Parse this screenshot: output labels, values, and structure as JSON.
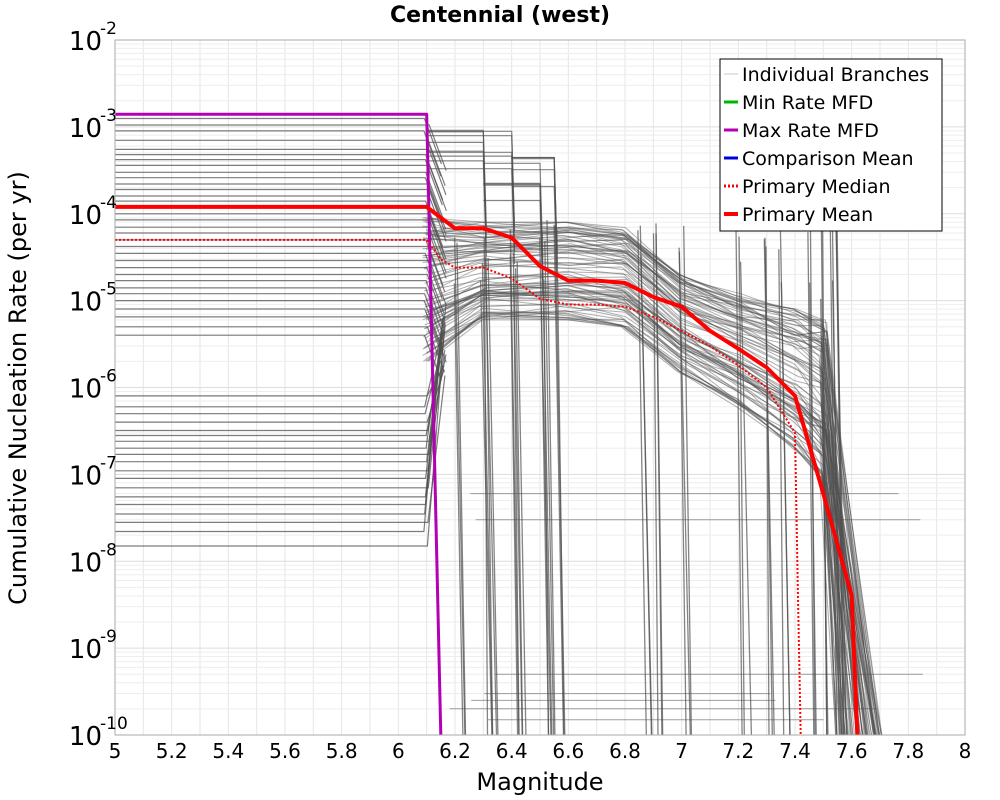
{
  "chart_data": {
    "type": "line",
    "title": "Centennial (west)",
    "xlabel": "Magnitude",
    "ylabel": "Cumulative Nucleation Rate (per yr)",
    "xlim": [
      5,
      8
    ],
    "ylim": [
      1e-10,
      0.01
    ],
    "yscale": "log",
    "grid": true,
    "legend_position": "top-right",
    "x_ticks": [
      {
        "value": 5,
        "label": "5"
      },
      {
        "value": 5.2,
        "label": "5.2"
      },
      {
        "value": 5.4,
        "label": "5.4"
      },
      {
        "value": 5.6,
        "label": "5.6"
      },
      {
        "value": 5.8,
        "label": "5.8"
      },
      {
        "value": 6,
        "label": "6"
      },
      {
        "value": 6.2,
        "label": "6.2"
      },
      {
        "value": 6.4,
        "label": "6.4"
      },
      {
        "value": 6.6,
        "label": "6.6"
      },
      {
        "value": 6.8,
        "label": "6.8"
      },
      {
        "value": 7,
        "label": "7"
      },
      {
        "value": 7.2,
        "label": "7.2"
      },
      {
        "value": 7.4,
        "label": "7.4"
      },
      {
        "value": 7.6,
        "label": "7.6"
      },
      {
        "value": 7.8,
        "label": "7.8"
      },
      {
        "value": 8,
        "label": "8"
      }
    ],
    "y_ticks": [
      {
        "value": 1e-10,
        "base": "10",
        "exp": "-10"
      },
      {
        "value": 1e-09,
        "base": "10",
        "exp": "-9"
      },
      {
        "value": 1e-08,
        "base": "10",
        "exp": "-8"
      },
      {
        "value": 1e-07,
        "base": "10",
        "exp": "-7"
      },
      {
        "value": 1e-06,
        "base": "10",
        "exp": "-6"
      },
      {
        "value": 1e-05,
        "base": "10",
        "exp": "-5"
      },
      {
        "value": 0.0001,
        "base": "10",
        "exp": "-4"
      },
      {
        "value": 0.001,
        "base": "10",
        "exp": "-3"
      },
      {
        "value": 0.01,
        "base": "10",
        "exp": "-2"
      }
    ],
    "legend": [
      {
        "label": "Individual Branches",
        "color": "#c8c8c8",
        "style": "solid-thin"
      },
      {
        "label": "Min Rate MFD",
        "color": "#00b400",
        "style": "solid"
      },
      {
        "label": "Max Rate MFD",
        "color": "#b400b4",
        "style": "solid"
      },
      {
        "label": "Comparison Mean",
        "color": "#0000dc",
        "style": "solid"
      },
      {
        "label": "Primary Median",
        "color": "#ff0000",
        "style": "dotted"
      },
      {
        "label": "Primary Mean",
        "color": "#ff0000",
        "style": "solid-thick"
      }
    ],
    "branches": {
      "color": "#505050",
      "flat_level_groups": [
        {
          "x_end": 6.1,
          "levels": [
            0.00125,
            0.00105,
            0.0009,
            0.0007,
            0.00055,
            0.00048,
            0.00042,
            0.00036,
            0.0003,
            0.00026,
            0.00022,
            0.00019,
            0.00016,
            0.00014,
            0.00012,
            0.0001,
            8.5e-05,
            7e-05,
            6e-05,
            5e-05,
            4.2e-05,
            3.5e-05,
            2.9e-05,
            2.4e-05,
            2e-05,
            1.7e-05,
            1.4e-05,
            1.2e-05,
            1e-05,
            8e-06,
            6.5e-06,
            5e-06,
            4e-06
          ]
        },
        {
          "x_end": 6.1,
          "levels": [
            8e-07,
            6e-07,
            5e-07,
            4e-07,
            3.2e-07,
            2.8e-07,
            2.4e-07,
            2e-07,
            1.7e-07,
            1.4e-07,
            1.1e-07,
            9e-08,
            7e-08,
            5.5e-08,
            4.5e-08,
            3.5e-08,
            2.8e-08,
            2.2e-08,
            1.5e-08
          ]
        }
      ],
      "step_groups": [
        {
          "x_start": 6.1,
          "x_end": 6.3,
          "top": 0.001
        },
        {
          "x_start": 6.1,
          "x_end": 6.4,
          "top": 0.001
        },
        {
          "x_start": 6.3,
          "x_end": 6.5,
          "top": 0.00045
        },
        {
          "x_start": 6.4,
          "x_end": 6.55,
          "top": 0.00045
        }
      ],
      "plateau_band": {
        "x": [
          6.1,
          6.3,
          6.6,
          6.8,
          7.0,
          7.2,
          7.4,
          7.5
        ],
        "upper": [
          9e-05,
          8e-05,
          8e-05,
          7e-05,
          2e-05,
          1.2e-05,
          8e-06,
          6e-06
        ],
        "lower": [
          2e-06,
          6e-06,
          6e-06,
          5e-06,
          1.5e-06,
          6e-07,
          2e-07,
          8e-08
        ]
      },
      "low_levels": [
        5e-10,
        3e-10,
        2.5e-10,
        2e-10,
        1.5e-10,
        3e-08,
        6e-08
      ]
    },
    "series": [
      {
        "name": "Max Rate MFD",
        "color": "#b400b4",
        "x": [
          5.0,
          6.1,
          6.15
        ],
        "y": [
          0.0014,
          0.0014,
          1e-10
        ]
      },
      {
        "name": "Primary Median",
        "color": "#ff0000",
        "x": [
          5.0,
          6.1,
          6.15,
          6.2,
          6.3,
          6.4,
          6.5,
          6.6,
          6.7,
          6.8,
          6.9,
          7.0,
          7.1,
          7.2,
          7.3,
          7.4,
          7.41,
          7.42
        ],
        "y": [
          5e-05,
          5e-05,
          3e-05,
          2.4e-05,
          2.4e-05,
          1.8e-05,
          1.05e-05,
          9e-06,
          9e-06,
          8.5e-06,
          6.5e-06,
          4.5e-06,
          3e-06,
          1.8e-06,
          1e-06,
          3e-07,
          5e-09,
          1e-10
        ]
      },
      {
        "name": "Primary Mean",
        "color": "#ff0000",
        "x": [
          5.0,
          6.1,
          6.15,
          6.2,
          6.3,
          6.4,
          6.5,
          6.6,
          6.7,
          6.8,
          6.9,
          7.0,
          7.1,
          7.2,
          7.3,
          7.4,
          7.5,
          7.6,
          7.62
        ],
        "y": [
          0.00012,
          0.00012,
          9e-05,
          6.8e-05,
          6.8e-05,
          5.3e-05,
          2.5e-05,
          1.7e-05,
          1.7e-05,
          1.6e-05,
          1.1e-05,
          8.5e-06,
          4.5e-06,
          2.8e-06,
          1.7e-06,
          8e-07,
          6e-08,
          4e-09,
          1e-10
        ]
      }
    ]
  }
}
